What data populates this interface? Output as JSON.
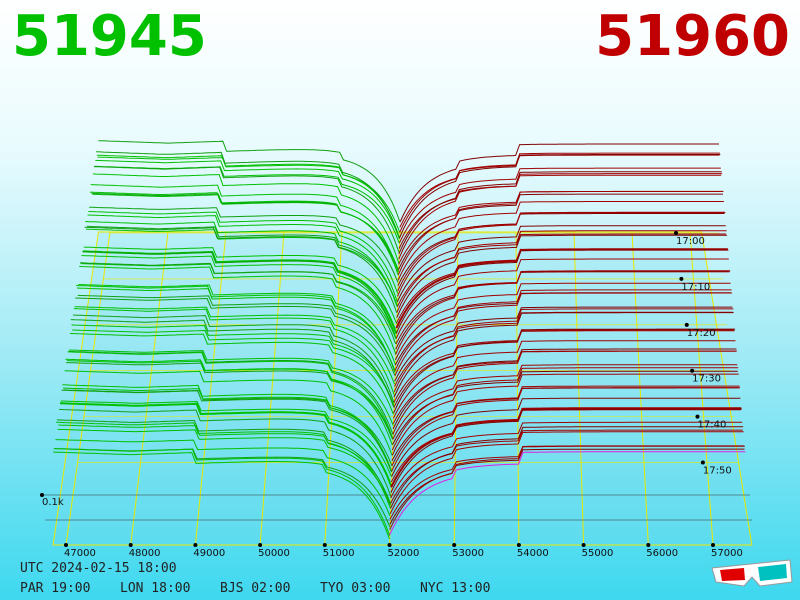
{
  "header": {
    "bid": "51945",
    "ask": "51960"
  },
  "price_axis": {
    "labels": [
      "47000",
      "48000",
      "49000",
      "50000",
      "51000",
      "52000",
      "53000",
      "54000",
      "55000",
      "56000",
      "57000"
    ]
  },
  "time_axis": {
    "labels": [
      "17:00",
      "17:10",
      "17:20",
      "17:30",
      "17:40",
      "17:50"
    ]
  },
  "depth_label": "0.1k",
  "footer": {
    "utc": "UTC 2024-02-15 18:00",
    "zones": [
      "PAR 19:00",
      "LON 18:00",
      "BJS 02:00",
      "TYO 03:00",
      "NYC 13:00"
    ]
  }
}
